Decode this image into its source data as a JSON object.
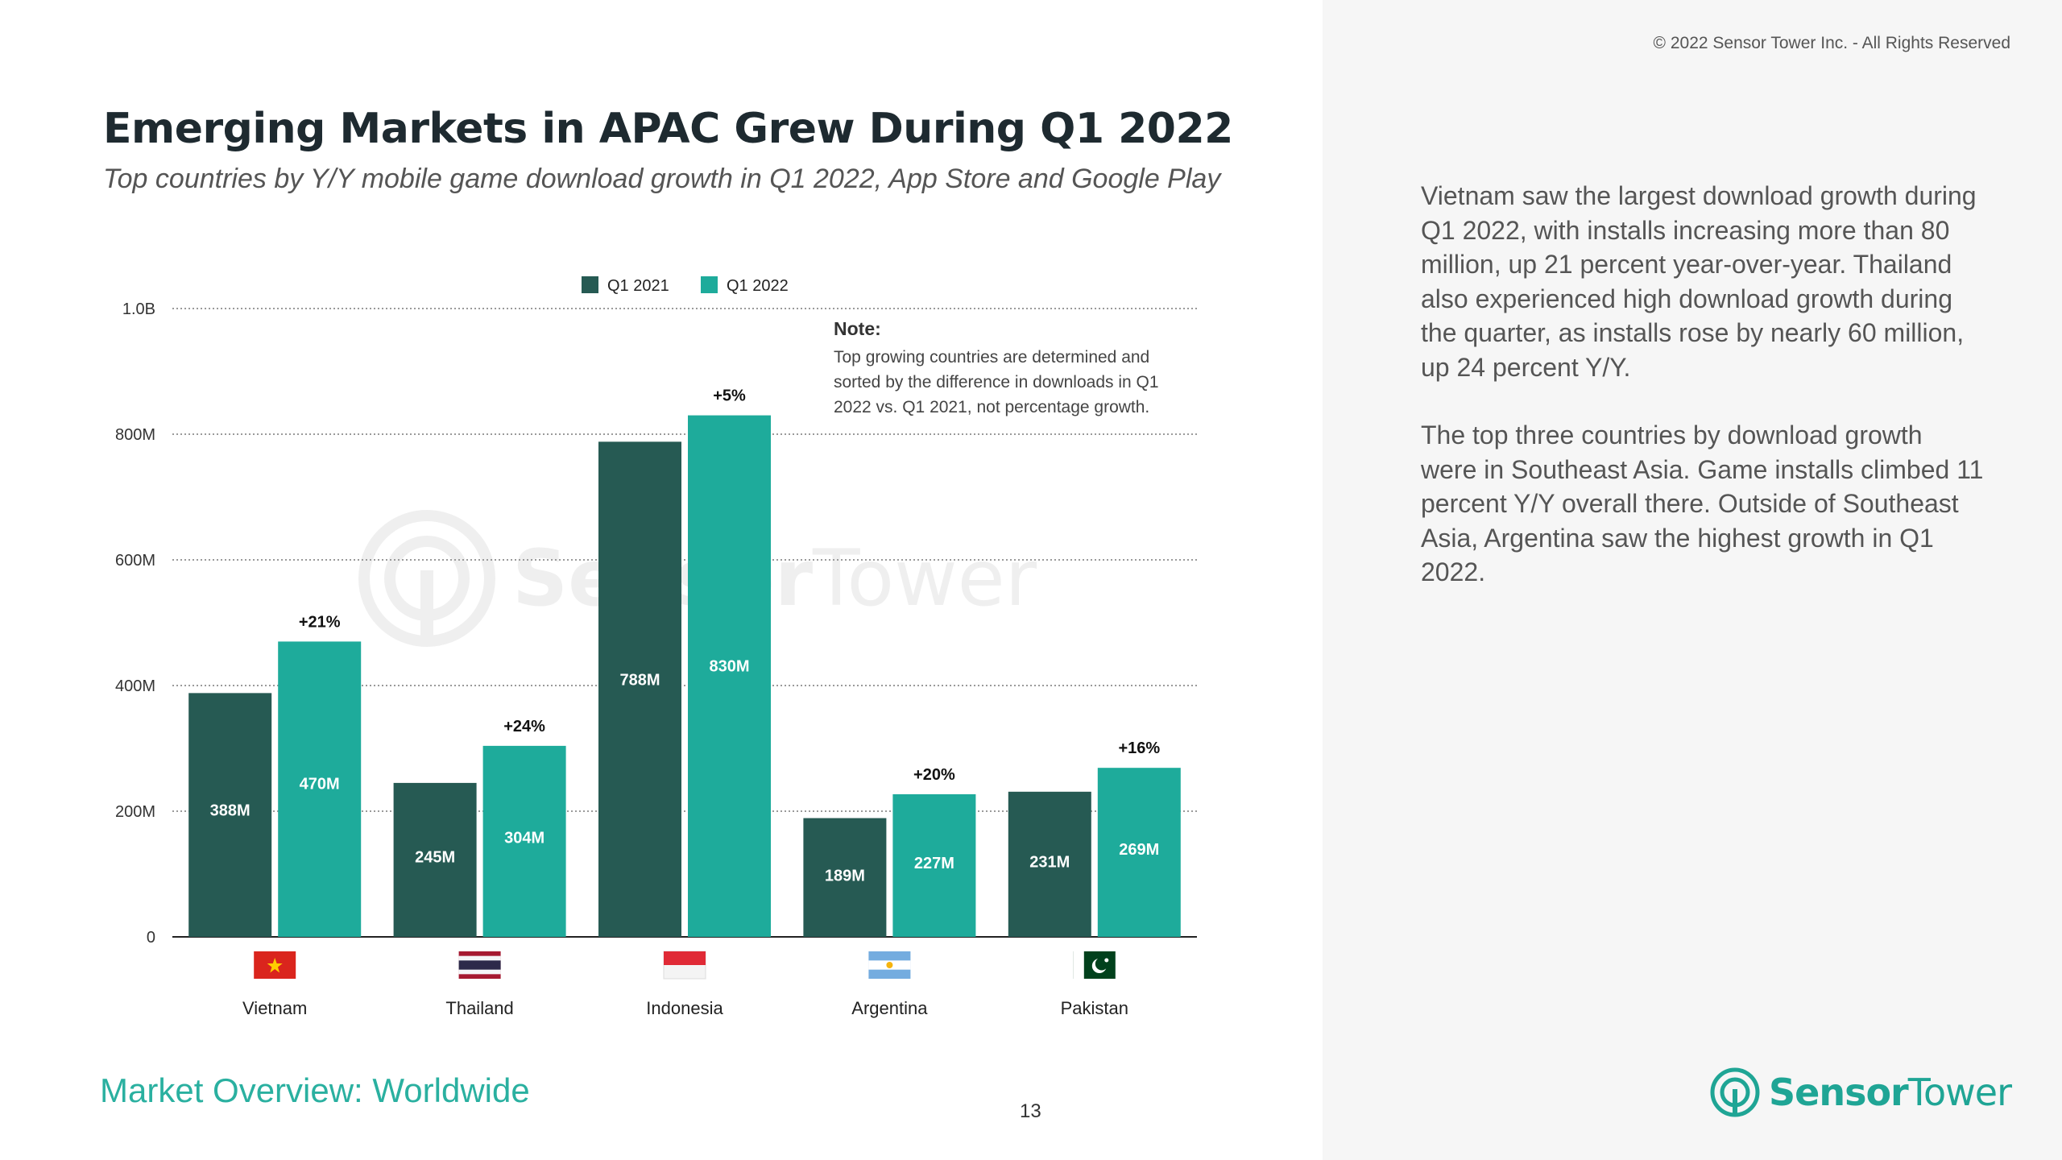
{
  "copyright": "© 2022 Sensor Tower Inc. - All Rights Reserved",
  "title": "Emerging Markets in APAC Grew During Q1 2022",
  "subtitle": "Top countries by Y/Y mobile game download growth in Q1 2022, App Store and Google Play",
  "commentary": [
    "Vietnam saw the largest download growth during Q1 2022, with installs increasing more than 80 million, up 21 percent year-over-year. Thailand also experienced high download growth during the quarter, as installs rose by nearly 60 million, up 24 percent Y/Y.",
    "The top three countries by download growth were in Southeast Asia. Game installs climbed 11 percent Y/Y overall there. Outside of Southeast Asia, Argentina saw the highest growth in Q1 2022."
  ],
  "footer": {
    "section": "Market Overview: Worldwide",
    "page": "13"
  },
  "logo": {
    "bold": "Sensor",
    "regular": "Tower"
  },
  "colors": {
    "q1_2021": "#265a53",
    "q1_2022": "#1eab9b",
    "accent": "#2ab0a0"
  },
  "chart_data": {
    "type": "bar",
    "categories": [
      "Vietnam",
      "Thailand",
      "Indonesia",
      "Argentina",
      "Pakistan"
    ],
    "series": [
      {
        "name": "Q1 2021",
        "values": [
          388,
          245,
          788,
          189,
          231
        ],
        "labels": [
          "388M",
          "245M",
          "788M",
          "189M",
          "231M"
        ]
      },
      {
        "name": "Q1 2022",
        "values": [
          470,
          304,
          830,
          227,
          269
        ],
        "labels": [
          "470M",
          "304M",
          "830M",
          "227M",
          "269M"
        ]
      }
    ],
    "growth_labels": [
      "+21%",
      "+24%",
      "+5%",
      "+20%",
      "+16%"
    ],
    "y_ticks": [
      {
        "value": 0,
        "label": "0"
      },
      {
        "value": 200,
        "label": "200M"
      },
      {
        "value": 400,
        "label": "400M"
      },
      {
        "value": 600,
        "label": "600M"
      },
      {
        "value": 800,
        "label": "800M"
      },
      {
        "value": 1000,
        "label": "1.0B"
      }
    ],
    "ylim": [
      0,
      1000
    ],
    "unit": "M",
    "legend": "top-center",
    "grid": true,
    "note_title": "Note:",
    "note_lines": [
      "Top growing countries are determined and",
      "sorted by the difference in downloads in Q1",
      "2022 vs. Q1 2021, not percentage growth."
    ],
    "watermark": {
      "bold": "Sensor",
      "regular": "Tower"
    }
  }
}
